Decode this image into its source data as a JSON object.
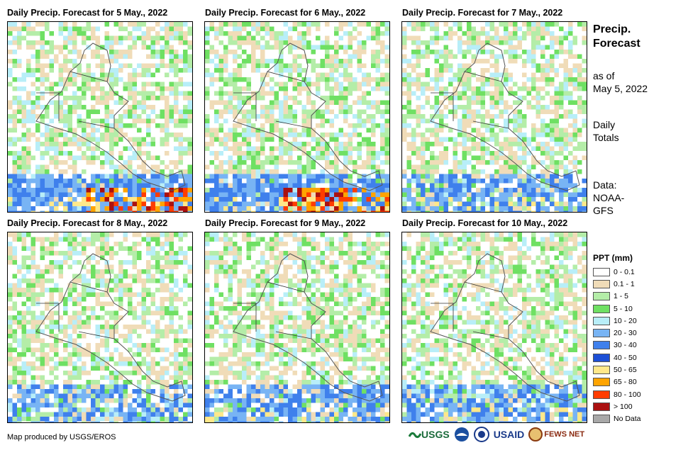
{
  "panels": [
    {
      "title": "Daily Precip. Forecast for 5 May., 2022",
      "intensity": 3
    },
    {
      "title": "Daily Precip. Forecast for 6 May., 2022",
      "intensity": 3
    },
    {
      "title": "Daily Precip. Forecast for 7 May., 2022",
      "intensity": 1
    },
    {
      "title": "Daily Precip. Forecast for 8 May., 2022",
      "intensity": 0
    },
    {
      "title": "Daily Precip. Forecast for 9 May., 2022",
      "intensity": 1
    },
    {
      "title": "Daily Precip. Forecast for 10 May., 2022",
      "intensity": 1
    }
  ],
  "side": {
    "title_line1": "Precip.",
    "title_line2": "Forecast",
    "asof_line1": "as of",
    "asof_line2": "May 5, 2022",
    "totals_line1": "Daily",
    "totals_line2": "Totals",
    "data_line1": "Data:",
    "data_line2": "NOAA-",
    "data_line3": "GFS"
  },
  "legend": {
    "title": "PPT (mm)",
    "items": [
      {
        "label": "0 - 0.1",
        "color": "#ffffff"
      },
      {
        "label": "0.1 - 1",
        "color": "#f0dcb8"
      },
      {
        "label": "1 - 5",
        "color": "#b4eda8"
      },
      {
        "label": "5 - 10",
        "color": "#6fe063"
      },
      {
        "label": "10 - 20",
        "color": "#b8eef8"
      },
      {
        "label": "20 - 30",
        "color": "#78b4f4"
      },
      {
        "label": "30 - 40",
        "color": "#3f80ec"
      },
      {
        "label": "40 - 50",
        "color": "#1c4fd6"
      },
      {
        "label": "50 - 65",
        "color": "#ffe88a"
      },
      {
        "label": "65 - 80",
        "color": "#ffa400"
      },
      {
        "label": "80 - 100",
        "color": "#ff3c00"
      },
      {
        "label": "> 100",
        "color": "#aa1010"
      },
      {
        "label": "No Data",
        "color": "#a8a8a8"
      }
    ]
  },
  "footer": {
    "credit": "Map produced by USGS/EROS",
    "logo_usgs": "USGS",
    "logo_usaid": "USAID",
    "logo_fewsnet": "FEWS NET"
  }
}
